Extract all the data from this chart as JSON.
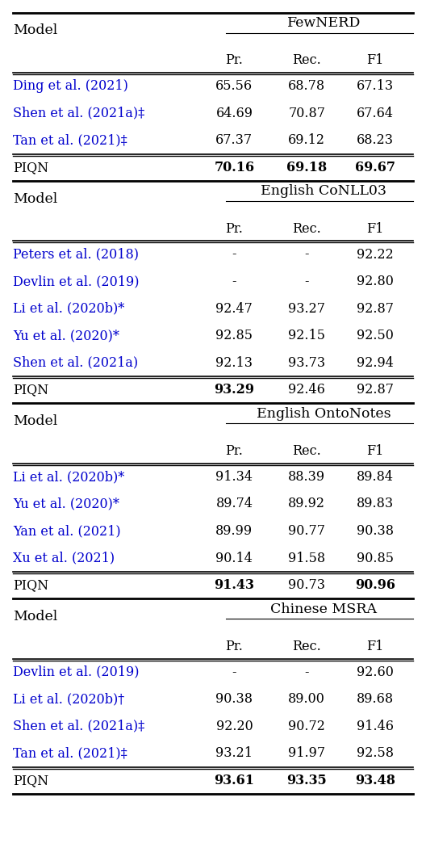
{
  "sections": [
    {
      "dataset": "FewNERD",
      "col_header": [
        "Pr.",
        "Rec.",
        "F1"
      ],
      "rows": [
        {
          "model": "Ding et al. (2021)",
          "values": [
            "65.56",
            "68.78",
            "67.13"
          ],
          "blue": true,
          "bold": []
        },
        {
          "model": "Shen et al. (2021a)‡",
          "values": [
            "64.69",
            "70.87",
            "67.64"
          ],
          "blue": true,
          "bold": []
        },
        {
          "model": "Tan et al. (2021)‡",
          "values": [
            "67.37",
            "69.12",
            "68.23"
          ],
          "blue": true,
          "bold": []
        }
      ],
      "piqn": [
        "70.16",
        "69.18",
        "69.67"
      ],
      "piqn_bold": [
        0,
        1,
        2
      ]
    },
    {
      "dataset": "English CoNLL03",
      "col_header": [
        "Pr.",
        "Rec.",
        "F1"
      ],
      "rows": [
        {
          "model": "Peters et al. (2018)",
          "values": [
            "-",
            "-",
            "92.22"
          ],
          "blue": true,
          "bold": []
        },
        {
          "model": "Devlin et al. (2019)",
          "values": [
            "-",
            "-",
            "92.80"
          ],
          "blue": true,
          "bold": []
        },
        {
          "model": "Li et al. (2020b)*",
          "values": [
            "92.47",
            "93.27",
            "92.87"
          ],
          "blue": true,
          "bold": []
        },
        {
          "model": "Yu et al. (2020)*",
          "values": [
            "92.85",
            "92.15",
            "92.50"
          ],
          "blue": true,
          "bold": []
        },
        {
          "model": "Shen et al. (2021a)",
          "values": [
            "92.13",
            "93.73",
            "92.94"
          ],
          "blue": true,
          "bold": []
        }
      ],
      "piqn": [
        "93.29",
        "92.46",
        "92.87"
      ],
      "piqn_bold": [
        0
      ]
    },
    {
      "dataset": "English OntoNotes",
      "col_header": [
        "Pr.",
        "Rec.",
        "F1"
      ],
      "rows": [
        {
          "model": "Li et al. (2020b)*",
          "values": [
            "91.34",
            "88.39",
            "89.84"
          ],
          "blue": true,
          "bold": []
        },
        {
          "model": "Yu et al. (2020)*",
          "values": [
            "89.74",
            "89.92",
            "89.83"
          ],
          "blue": true,
          "bold": []
        },
        {
          "model": "Yan et al. (2021)",
          "values": [
            "89.99",
            "90.77",
            "90.38"
          ],
          "blue": true,
          "bold": []
        },
        {
          "model": "Xu et al. (2021)",
          "values": [
            "90.14",
            "91.58",
            "90.85"
          ],
          "blue": true,
          "bold": []
        }
      ],
      "piqn": [
        "91.43",
        "90.73",
        "90.96"
      ],
      "piqn_bold": [
        0,
        2
      ]
    },
    {
      "dataset": "Chinese MSRA",
      "col_header": [
        "Pr.",
        "Rec.",
        "F1"
      ],
      "rows": [
        {
          "model": "Devlin et al. (2019)",
          "values": [
            "-",
            "-",
            "92.60"
          ],
          "blue": true,
          "bold": []
        },
        {
          "model": "Li et al. (2020b)†",
          "values": [
            "90.38",
            "89.00",
            "89.68"
          ],
          "blue": true,
          "bold": []
        },
        {
          "model": "Shen et al. (2021a)‡",
          "values": [
            "92.20",
            "90.72",
            "91.46"
          ],
          "blue": true,
          "bold": []
        },
        {
          "model": "Tan et al. (2021)‡",
          "values": [
            "93.21",
            "91.97",
            "92.58"
          ],
          "blue": true,
          "bold": []
        }
      ],
      "piqn": [
        "93.61",
        "93.35",
        "93.48"
      ],
      "piqn_bold": [
        0,
        1,
        2
      ]
    }
  ],
  "blue_color": "#0000CD",
  "black_color": "#000000",
  "bg_color": "#ffffff",
  "fontsize": 11.5,
  "header_fontsize": 12.5
}
